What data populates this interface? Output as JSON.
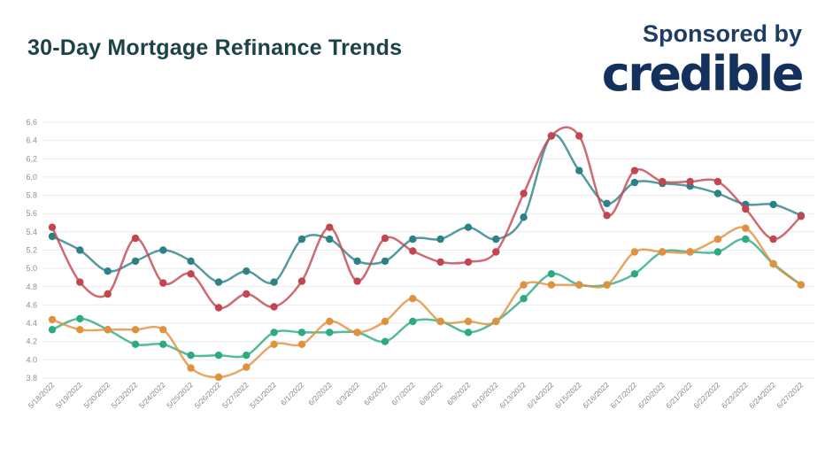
{
  "header": {
    "title": "30-Day Mortgage Refinance Trends",
    "sponsored_by": "Sponsored by",
    "sponsor_name": "credible"
  },
  "colors": {
    "title_text": "#1c4347",
    "sponsor_text": "#1e3d63",
    "logo_text": "#14315e",
    "series_teal": "#2c8187",
    "series_red": "#c2454f",
    "series_green": "#2caa82",
    "series_orange": "#e0913d",
    "gridline": "#ebebeb",
    "axis_label": "#8a8a8a"
  },
  "chart_data": {
    "type": "line",
    "title": "30-Day Mortgage Refinance Trends",
    "xlabel": "",
    "ylabel": "",
    "ylim": [
      3.8,
      6.6
    ],
    "ytick_step": 0.2,
    "grid": true,
    "legend": "none",
    "marker": "circle",
    "categories": [
      "5/18/2022",
      "5/19/2022",
      "5/20/2022",
      "5/23/2022",
      "5/24/2022",
      "5/25/2022",
      "5/26/2022",
      "5/27/2022",
      "5/31/2022",
      "6/1/2022",
      "6/2/2022",
      "6/3/2022",
      "6/6/2022",
      "6/7/2022",
      "6/8/2022",
      "6/9/2022",
      "6/10/2022",
      "6/13/2022",
      "6/14/2022",
      "6/15/2022",
      "6/16/2022",
      "6/17/2022",
      "6/20/2022",
      "6/21/2022",
      "6/22/2022",
      "6/23/2022",
      "6/24/2022",
      "6/27/2022"
    ],
    "series": [
      {
        "name": "teal-series",
        "color": "#2c8187",
        "values": [
          5.35,
          5.2,
          4.97,
          5.08,
          5.2,
          5.08,
          4.85,
          4.97,
          4.85,
          5.32,
          5.32,
          5.08,
          5.08,
          5.32,
          5.32,
          5.45,
          5.32,
          5.56,
          6.45,
          6.07,
          5.71,
          5.94,
          5.93,
          5.9,
          5.82,
          5.7,
          5.7,
          5.58
        ]
      },
      {
        "name": "green-series",
        "color": "#2caa82",
        "values": [
          4.33,
          4.45,
          4.33,
          4.17,
          4.17,
          4.05,
          4.05,
          4.05,
          4.3,
          4.3,
          4.3,
          4.3,
          4.2,
          4.42,
          4.42,
          4.3,
          4.42,
          4.67,
          4.94,
          4.82,
          4.82,
          4.94,
          5.18,
          5.18,
          5.18,
          5.32,
          5.05,
          4.82
        ]
      },
      {
        "name": "orange-series",
        "color": "#e0913d",
        "values": [
          4.44,
          4.33,
          4.33,
          4.33,
          4.33,
          3.91,
          3.81,
          3.92,
          4.17,
          4.17,
          4.42,
          4.3,
          4.42,
          4.67,
          4.42,
          4.42,
          4.42,
          4.82,
          4.82,
          4.82,
          4.82,
          5.18,
          5.18,
          5.18,
          5.32,
          5.44,
          5.05,
          4.82
        ]
      },
      {
        "name": "red-series",
        "color": "#c2454f",
        "values": [
          5.45,
          4.85,
          4.72,
          5.33,
          4.84,
          4.94,
          4.57,
          4.72,
          4.58,
          4.86,
          5.45,
          4.86,
          5.33,
          5.19,
          5.07,
          5.07,
          5.18,
          5.82,
          6.45,
          6.45,
          5.58,
          6.07,
          5.95,
          5.95,
          5.95,
          5.65,
          5.32,
          5.57
        ]
      }
    ]
  }
}
